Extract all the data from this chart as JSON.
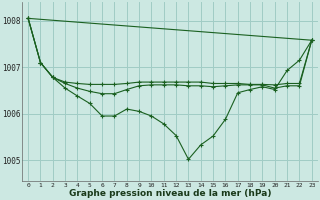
{
  "background_color": "#cce8e2",
  "grid_color": "#a0ccc5",
  "line_color": "#1a6020",
  "title": "Graphe pression niveau de la mer (hPa)",
  "ylim": [
    1004.55,
    1008.4
  ],
  "xlim": [
    -0.5,
    23.5
  ],
  "yticks": [
    1005,
    1006,
    1007,
    1008
  ],
  "xticks": [
    0,
    1,
    2,
    3,
    4,
    5,
    6,
    7,
    8,
    9,
    10,
    11,
    12,
    13,
    14,
    15,
    16,
    17,
    18,
    19,
    20,
    21,
    22,
    23
  ],
  "line_diagonal": {
    "x": [
      0,
      23
    ],
    "y": [
      1008.05,
      1007.58
    ]
  },
  "line_deep": [
    1008.05,
    1007.1,
    1006.78,
    1006.55,
    1006.38,
    1006.22,
    1005.95,
    1005.95,
    1006.1,
    1006.05,
    1005.95,
    1005.78,
    1005.53,
    1005.02,
    1005.33,
    1005.52,
    1005.88,
    1006.45,
    1006.52,
    1006.58,
    1006.52,
    1006.93,
    1007.15,
    1007.58
  ],
  "line_flat_high": [
    1008.05,
    1007.1,
    1006.78,
    1006.68,
    1006.65,
    1006.63,
    1006.63,
    1006.63,
    1006.65,
    1006.68,
    1006.68,
    1006.68,
    1006.68,
    1006.68,
    1006.68,
    1006.65,
    1006.65,
    1006.65,
    1006.63,
    1006.63,
    1006.62,
    1006.65,
    1006.65,
    1007.58
  ],
  "line_flat_mid": [
    1008.05,
    1007.1,
    1006.78,
    1006.65,
    1006.55,
    1006.48,
    1006.43,
    1006.43,
    1006.52,
    1006.6,
    1006.62,
    1006.62,
    1006.62,
    1006.6,
    1006.6,
    1006.58,
    1006.6,
    1006.62,
    1006.62,
    1006.62,
    1006.55,
    1006.6,
    1006.6,
    1007.58
  ]
}
